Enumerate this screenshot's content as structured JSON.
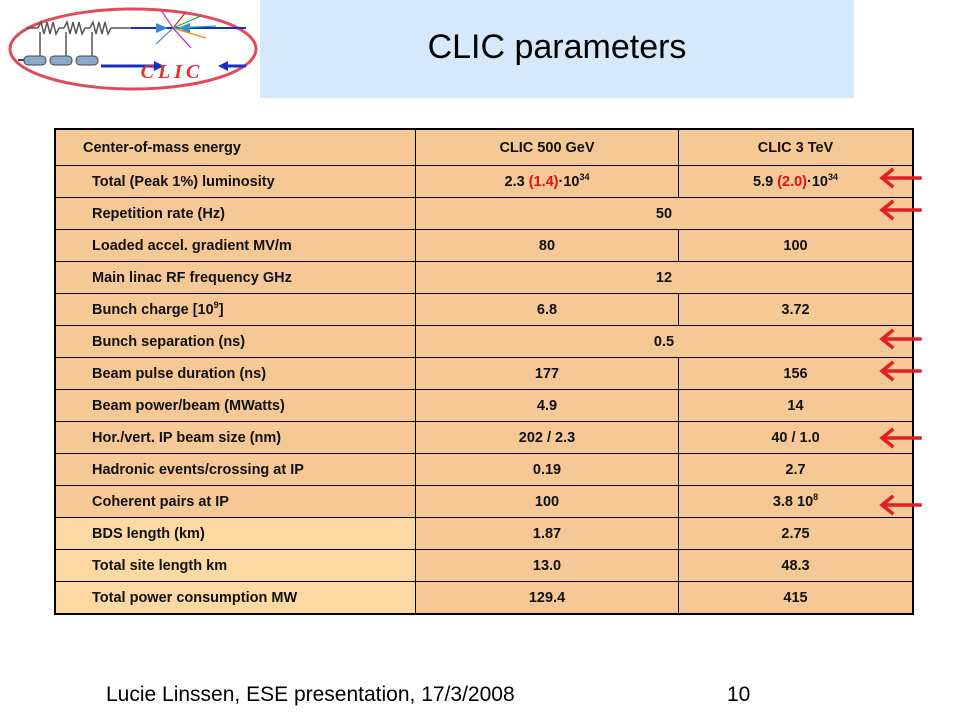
{
  "logo": {
    "text": "CLIC"
  },
  "title": "CLIC parameters",
  "table": {
    "header": [
      "Center-of-mass energy",
      "CLIC 500 GeV",
      "CLIC 3 TeV"
    ],
    "rows": [
      {
        "label": "Total (Peak 1%) luminosity",
        "v1_main": "2.3 ",
        "v1_red": "(1.4)",
        "v1_tail": "·10",
        "v1_exp": "34",
        "v2_main": "5.9 ",
        "v2_red": "(2.0)",
        "v2_tail": "·10",
        "v2_exp": "34"
      },
      {
        "label": "Repetition rate (Hz)",
        "value": "50"
      },
      {
        "label": "Loaded accel. gradient MV/m",
        "v1": "80",
        "v2": "100"
      },
      {
        "label": "Main linac RF frequency GHz",
        "value": "12"
      },
      {
        "label_main": "Bunch charge  [10",
        "label_exp": "9",
        "label_tail": "]",
        "v1": "6.8",
        "v2": "3.72"
      },
      {
        "label": "Bunch separation (ns)",
        "value": "0.5"
      },
      {
        "label": "Beam pulse duration (ns)",
        "v1": "177",
        "v2": "156"
      },
      {
        "label": "Beam power/beam (MWatts)",
        "v1": "4.9",
        "v2": "14"
      },
      {
        "label": "Hor./vert. IP beam size (nm)",
        "v1": "202 / 2.3",
        "v2": "40 / 1.0"
      },
      {
        "label": "Hadronic events/crossing at IP",
        "v1": "0.19",
        "v2": "2.7"
      },
      {
        "label": "Coherent pairs at IP",
        "v1": "100",
        "v2_main": "3.8 10",
        "v2_exp": "8"
      },
      {
        "label": "BDS length (km)",
        "v1": "1.87",
        "v2": "2.75"
      },
      {
        "label": "Total site length km",
        "v1": "13.0",
        "v2": "48.3"
      },
      {
        "label": "Total power consumption MW",
        "v1": "129.4",
        "v2": "415"
      }
    ]
  },
  "arrows": {
    "color": "#e02020",
    "icon": "left-arrow"
  },
  "footer": "Lucie Linssen, ESE presentation, 17/3/2008",
  "page_number": "10"
}
